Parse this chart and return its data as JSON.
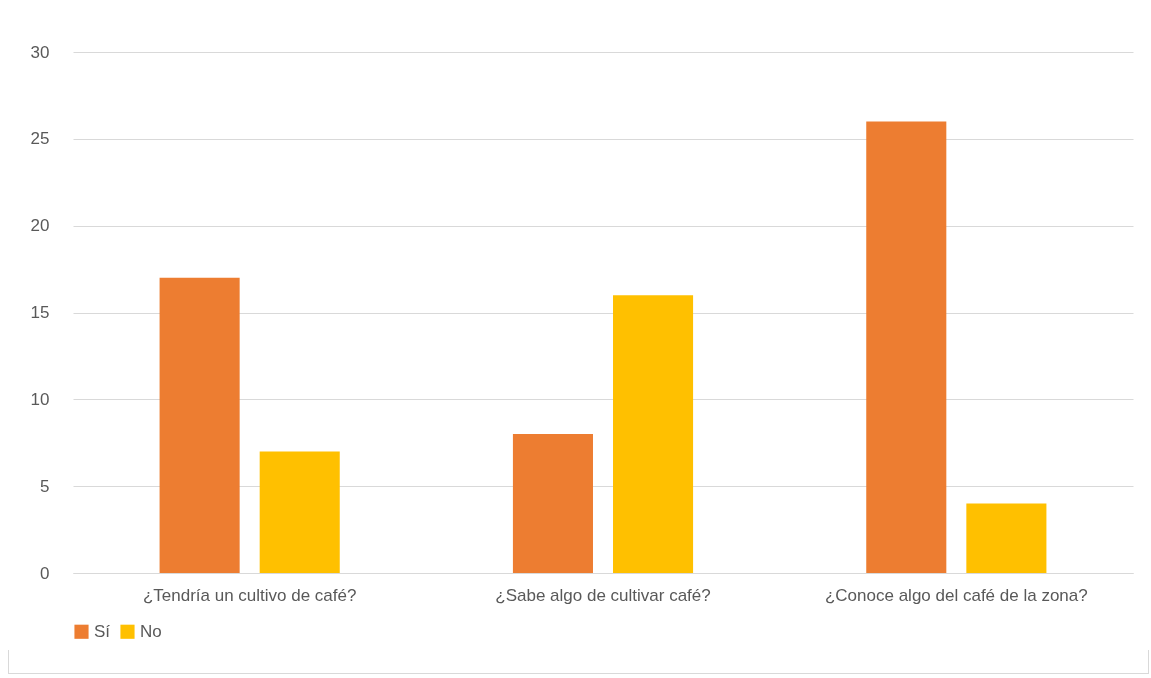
{
  "chart_data": {
    "type": "bar",
    "categories": [
      "¿Tendría un cultivo de café?",
      "¿Sabe algo de cultivar café?",
      "¿Conoce algo del café de la zona?"
    ],
    "series": [
      {
        "name": "Sí",
        "color": "#ed7d31",
        "values": [
          17,
          8,
          26
        ]
      },
      {
        "name": "No",
        "color": "#ffc000",
        "values": [
          7,
          16,
          4
        ]
      }
    ],
    "ylim": [
      0,
      30
    ],
    "yticks": [
      0,
      5,
      10,
      15,
      20,
      25,
      30
    ],
    "grid": "y",
    "legend": "bottom"
  }
}
